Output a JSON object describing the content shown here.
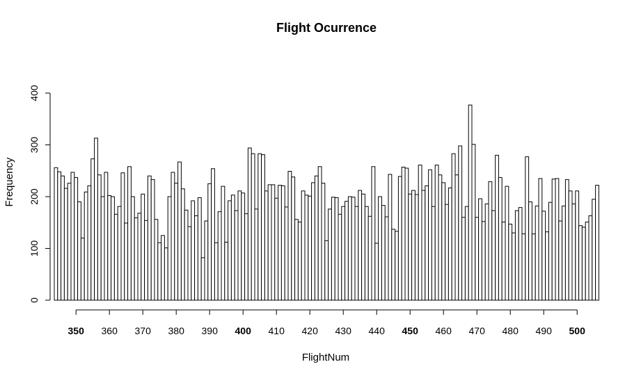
{
  "chart_data": {
    "type": "bar",
    "title": "Flight Ocurrence",
    "xlabel": "FlightNum",
    "ylabel": "Frequency",
    "x_start": 344,
    "values": [
      256,
      248,
      240,
      216,
      226,
      247,
      237,
      190,
      120,
      209,
      221,
      273,
      313,
      242,
      200,
      247,
      202,
      200,
      166,
      181,
      246,
      149,
      258,
      200,
      159,
      168,
      205,
      154,
      240,
      233,
      156,
      111,
      125,
      101,
      200,
      247,
      226,
      267,
      215,
      174,
      142,
      192,
      163,
      198,
      82,
      153,
      225,
      254,
      111,
      171,
      220,
      112,
      192,
      203,
      173,
      211,
      207,
      167,
      294,
      283,
      176,
      283,
      281,
      211,
      223,
      223,
      197,
      222,
      221,
      180,
      249,
      238,
      156,
      151,
      211,
      203,
      201,
      227,
      240,
      258,
      226,
      115,
      176,
      199,
      198,
      166,
      181,
      191,
      200,
      199,
      181,
      212,
      205,
      181,
      162,
      258,
      110,
      200,
      183,
      161,
      243,
      137,
      133,
      239,
      257,
      255,
      205,
      212,
      204,
      261,
      212,
      221,
      252,
      181,
      261,
      242,
      227,
      185,
      217,
      283,
      242,
      298,
      160,
      181,
      377,
      301,
      160,
      196,
      152,
      186,
      229,
      173,
      280,
      237,
      151,
      220,
      147,
      130,
      173,
      179,
      128,
      277,
      190,
      128,
      182,
      235,
      172,
      132,
      189,
      234,
      235,
      153,
      182,
      233,
      211,
      186,
      211,
      144,
      141,
      151,
      163,
      195,
      222
    ],
    "ylim": [
      0,
      400
    ],
    "yticks": [
      0,
      100,
      200,
      300,
      400
    ],
    "xticks": [
      350,
      360,
      370,
      380,
      390,
      400,
      410,
      420,
      430,
      440,
      450,
      460,
      470,
      480,
      490,
      500
    ],
    "xtick_labels": [
      "350",
      "360",
      "370",
      "380",
      "390",
      "400",
      "410",
      "420",
      "430",
      "440",
      "450",
      "460",
      "470",
      "480",
      "490",
      "500"
    ],
    "ytick_labels": [
      "0",
      "100",
      "200",
      "300",
      "400"
    ],
    "bold_xticks": [
      "350",
      "400",
      "450",
      "500"
    ],
    "grid": false,
    "legend": "none",
    "bar_fill": "#ffffff",
    "bar_stroke": "#000000"
  }
}
